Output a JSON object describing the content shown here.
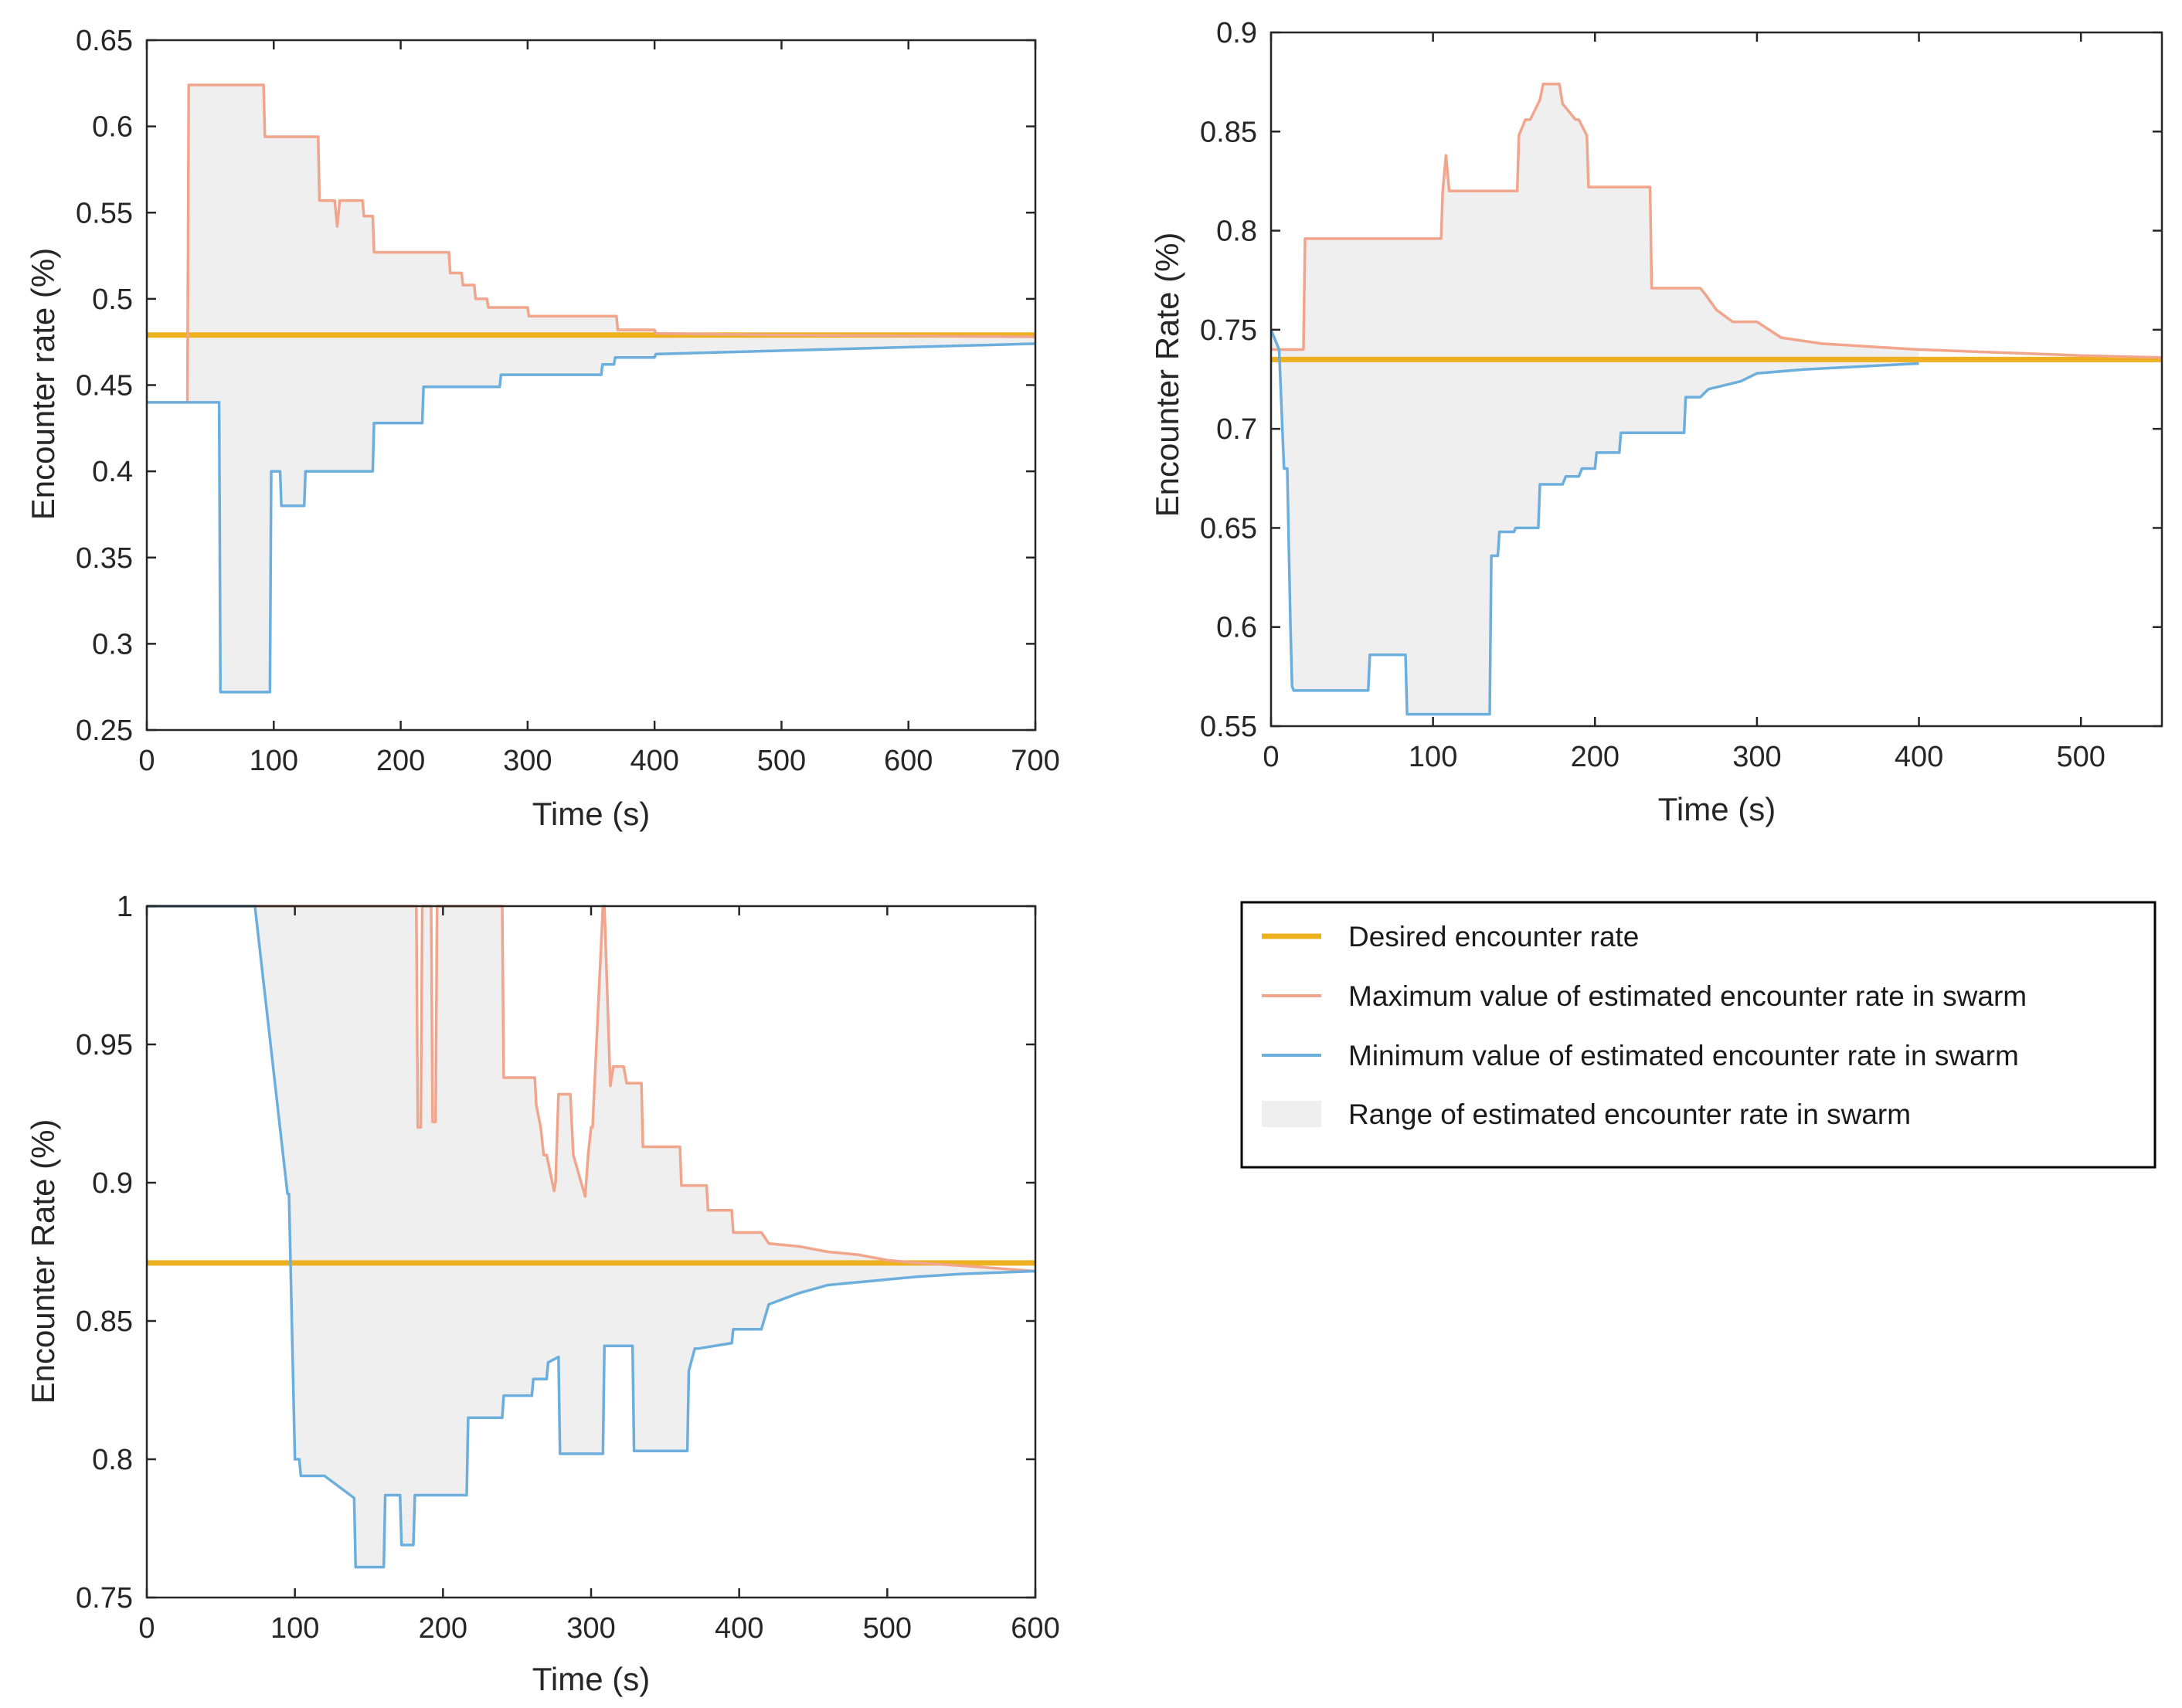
{
  "legend": {
    "desired": "Desired encounter rate",
    "max": "Maximum value of estimated encounter rate in swarm",
    "min": "Minimum value of estimated encounter rate in swarm",
    "range": "Range of estimated encounter rate in swarm"
  },
  "colors": {
    "desired": "#EDB120",
    "max": "#F0A58C",
    "min": "#6CAEDC",
    "range": "#EFEFEF",
    "axes": "#262626"
  },
  "chart_data": [
    {
      "type": "line",
      "title": "",
      "xlabel": "Time (s)",
      "ylabel": "Encounter rate (%)",
      "xlim": [
        0,
        700
      ],
      "ylim": [
        0.25,
        0.65
      ],
      "xticks": [
        "0",
        "100",
        "200",
        "300",
        "400",
        "500",
        "600",
        "700"
      ],
      "yticks": [
        "0.25",
        "0.3",
        "0.35",
        "0.4",
        "0.45",
        "0.5",
        "0.55",
        "0.6",
        "0.65"
      ],
      "desired": 0.479,
      "series": [
        {
          "name": "max",
          "x": [
            0,
            32,
            33,
            92,
            93,
            135,
            136,
            148,
            150,
            152,
            154,
            170,
            171,
            178,
            179,
            238,
            239,
            248,
            249,
            258,
            259,
            268,
            269,
            300,
            301,
            370,
            371,
            400,
            401,
            500,
            700
          ],
          "y": [
            0.44,
            0.44,
            0.624,
            0.624,
            0.594,
            0.594,
            0.557,
            0.557,
            0.542,
            0.557,
            0.557,
            0.557,
            0.548,
            0.548,
            0.527,
            0.527,
            0.515,
            0.515,
            0.508,
            0.508,
            0.5,
            0.5,
            0.495,
            0.495,
            0.49,
            0.49,
            0.482,
            0.482,
            0.48,
            0.479,
            0.478
          ]
        },
        {
          "name": "min",
          "x": [
            0,
            57,
            58,
            97,
            98,
            105,
            106,
            124,
            125,
            178,
            179,
            217,
            218,
            278,
            279,
            358,
            359,
            368,
            369,
            400,
            401,
            700
          ],
          "y": [
            0.44,
            0.44,
            0.272,
            0.272,
            0.4,
            0.4,
            0.38,
            0.38,
            0.4,
            0.4,
            0.428,
            0.428,
            0.449,
            0.449,
            0.456,
            0.456,
            0.462,
            0.462,
            0.466,
            0.466,
            0.468,
            0.474
          ]
        }
      ]
    },
    {
      "type": "line",
      "title": "",
      "xlabel": "Time (s)",
      "ylabel": "Encounter Rate (%)",
      "xlim": [
        0,
        550
      ],
      "ylim": [
        0.55,
        0.9
      ],
      "xticks": [
        "0",
        "100",
        "200",
        "300",
        "400",
        "500"
      ],
      "yticks": [
        "0.55",
        "0.6",
        "0.65",
        "0.7",
        "0.75",
        "0.8",
        "0.85",
        "0.9"
      ],
      "desired": 0.735,
      "series": [
        {
          "name": "max",
          "x": [
            0,
            20,
            21,
            105,
            106,
            108,
            110,
            152,
            153,
            157,
            160,
            166,
            168,
            178,
            180,
            188,
            190,
            195,
            196,
            234,
            235,
            265,
            268,
            275,
            285,
            300,
            315,
            340,
            400,
            500,
            550
          ],
          "y": [
            0.74,
            0.74,
            0.796,
            0.796,
            0.82,
            0.838,
            0.82,
            0.82,
            0.848,
            0.856,
            0.856,
            0.866,
            0.874,
            0.874,
            0.864,
            0.856,
            0.856,
            0.848,
            0.822,
            0.822,
            0.771,
            0.771,
            0.768,
            0.76,
            0.754,
            0.754,
            0.746,
            0.743,
            0.74,
            0.737,
            0.736
          ]
        },
        {
          "name": "min",
          "x": [
            0,
            5,
            8,
            10,
            12,
            13,
            14,
            60,
            61,
            83,
            84,
            135,
            136,
            140,
            141,
            150,
            151,
            165,
            166,
            180,
            182,
            190,
            192,
            200,
            201,
            215,
            216,
            255,
            256,
            265,
            270,
            290,
            300,
            330,
            400
          ],
          "y": [
            0.75,
            0.74,
            0.68,
            0.68,
            0.6,
            0.57,
            0.568,
            0.568,
            0.586,
            0.586,
            0.556,
            0.556,
            0.636,
            0.636,
            0.648,
            0.648,
            0.65,
            0.65,
            0.672,
            0.672,
            0.676,
            0.676,
            0.68,
            0.68,
            0.688,
            0.688,
            0.698,
            0.698,
            0.716,
            0.716,
            0.72,
            0.724,
            0.728,
            0.73,
            0.733
          ]
        }
      ]
    },
    {
      "type": "line",
      "title": "",
      "xlabel": "Time (s)",
      "ylabel": "Encounter Rate (%)",
      "xlim": [
        0,
        600
      ],
      "ylim": [
        0.75,
        1
      ],
      "xticks": [
        "0",
        "100",
        "200",
        "300",
        "400",
        "500",
        "600"
      ],
      "yticks": [
        "0.75",
        "0.8",
        "0.85",
        "0.9",
        "0.95",
        "1"
      ],
      "desired": 0.871,
      "series": [
        {
          "name": "max",
          "x": [
            0,
            160,
            161,
            172,
            175,
            178,
            180,
            182,
            183,
            185,
            186,
            192,
            193,
            195,
            196,
            208,
            209,
            212,
            213,
            220,
            221,
            240,
            241,
            246,
            247,
            262,
            263,
            266,
            268,
            270,
            275,
            276,
            278,
            286,
            288,
            296,
            298,
            300,
            301,
            308,
            309,
            313,
            315,
            318,
            320,
            322,
            324,
            326,
            328,
            334,
            335,
            360,
            361,
            378,
            379,
            395,
            396,
            415,
            420,
            440,
            460,
            480,
            500,
            520,
            550,
            600
          ],
          "y": [
            1,
            1,
            1,
            1,
            1,
            1,
            1,
            1,
            0.92,
            0.92,
            1,
            1,
            0.922,
            0.922,
            1,
            1,
            1,
            1,
            1,
            1,
            1,
            1,
            0.938,
            0.938,
            0.938,
            0.938,
            0.928,
            0.92,
            0.91,
            0.91,
            0.897,
            0.9,
            0.932,
            0.932,
            0.91,
            0.895,
            0.91,
            0.92,
            0.92,
            1,
            1,
            0.935,
            0.942,
            0.942,
            0.942,
            0.942,
            0.936,
            0.936,
            0.936,
            0.936,
            0.913,
            0.913,
            0.899,
            0.899,
            0.89,
            0.89,
            0.882,
            0.882,
            0.878,
            0.877,
            0.875,
            0.874,
            0.872,
            0.871,
            0.87,
            0.868
          ]
        },
        {
          "name": "min",
          "x": [
            0,
            72,
            73,
            95,
            96,
            100,
            103,
            104,
            120,
            140,
            141,
            160,
            161,
            171,
            172,
            180,
            181,
            216,
            217,
            240,
            241,
            260,
            261,
            270,
            271,
            278,
            279,
            308,
            309,
            328,
            329,
            365,
            366,
            370,
            372,
            395,
            396,
            415,
            420,
            440,
            460,
            480,
            500,
            520,
            550,
            600
          ],
          "y": [
            1,
            1,
            1,
            0.896,
            0.896,
            0.8,
            0.8,
            0.794,
            0.794,
            0.786,
            0.761,
            0.761,
            0.787,
            0.787,
            0.769,
            0.769,
            0.787,
            0.787,
            0.815,
            0.815,
            0.823,
            0.823,
            0.829,
            0.829,
            0.835,
            0.837,
            0.802,
            0.802,
            0.841,
            0.841,
            0.803,
            0.803,
            0.832,
            0.84,
            0.84,
            0.842,
            0.847,
            0.847,
            0.856,
            0.86,
            0.863,
            0.864,
            0.865,
            0.866,
            0.867,
            0.868
          ]
        }
      ]
    }
  ]
}
